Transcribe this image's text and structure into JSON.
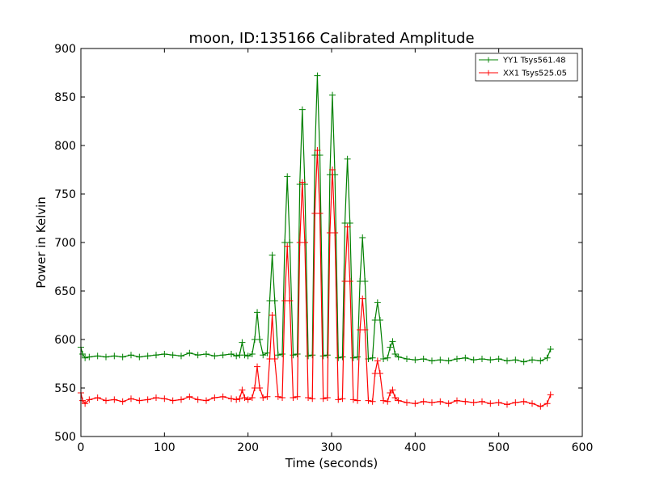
{
  "chart_data": {
    "type": "line",
    "title": "moon, ID:135166 Calibrated Amplitude",
    "xlabel": "Time (seconds)",
    "ylabel": "Power in Kelvin",
    "xlim": [
      0,
      600
    ],
    "ylim": [
      500,
      900
    ],
    "xticks": [
      "0",
      "100",
      "200",
      "300",
      "400",
      "500",
      "600"
    ],
    "yticks": [
      "500",
      "550",
      "600",
      "650",
      "700",
      "750",
      "800",
      "850",
      "900"
    ],
    "grid": false,
    "legend_position": "top-right",
    "series": [
      {
        "name": "YY1 Tsys561.48",
        "color": "#008000",
        "marker": "+",
        "x": [
          0,
          2,
          5,
          10,
          20,
          30,
          40,
          50,
          60,
          70,
          80,
          90,
          100,
          110,
          120,
          130,
          140,
          150,
          160,
          170,
          180,
          186,
          190,
          193,
          196,
          200,
          205,
          208,
          211,
          214,
          218,
          223,
          226,
          229,
          232,
          236,
          241,
          244,
          247,
          250,
          254,
          259,
          262,
          265,
          268,
          272,
          277,
          280,
          283,
          286,
          290,
          295,
          298,
          301,
          304,
          308,
          313,
          316,
          319,
          322,
          326,
          331,
          334,
          337,
          340,
          344,
          349,
          352,
          355,
          358,
          362,
          367,
          370,
          373,
          376,
          380,
          390,
          400,
          410,
          420,
          430,
          440,
          450,
          460,
          470,
          480,
          490,
          500,
          510,
          520,
          530,
          540,
          550,
          558,
          562
        ],
        "y": [
          592,
          585,
          581,
          582,
          583,
          582,
          583,
          582,
          584,
          582,
          583,
          584,
          585,
          584,
          583,
          586,
          584,
          585,
          583,
          584,
          585,
          583,
          584,
          597,
          584,
          583,
          585,
          600,
          628,
          600,
          584,
          586,
          640,
          687,
          640,
          584,
          585,
          700,
          768,
          700,
          584,
          585,
          760,
          837,
          760,
          583,
          584,
          790,
          872,
          790,
          583,
          584,
          770,
          852,
          770,
          581,
          582,
          720,
          786,
          720,
          581,
          582,
          660,
          705,
          660,
          580,
          581,
          620,
          638,
          620,
          580,
          581,
          592,
          598,
          585,
          582,
          580,
          579,
          580,
          578,
          579,
          578,
          580,
          581,
          579,
          580,
          579,
          580,
          578,
          579,
          577,
          579,
          578,
          581,
          590
        ]
      },
      {
        "name": "XX1 Tsys525.05",
        "color": "#ff0000",
        "marker": "+",
        "x": [
          0,
          2,
          5,
          10,
          20,
          30,
          40,
          50,
          60,
          70,
          80,
          90,
          100,
          110,
          120,
          130,
          140,
          150,
          160,
          170,
          180,
          186,
          190,
          193,
          196,
          200,
          205,
          208,
          211,
          214,
          218,
          223,
          226,
          229,
          232,
          236,
          241,
          244,
          247,
          250,
          254,
          259,
          262,
          265,
          268,
          272,
          277,
          280,
          283,
          286,
          290,
          295,
          298,
          301,
          304,
          308,
          313,
          316,
          319,
          322,
          326,
          331,
          334,
          337,
          340,
          344,
          349,
          352,
          355,
          358,
          362,
          367,
          370,
          373,
          376,
          380,
          390,
          400,
          410,
          420,
          430,
          440,
          450,
          460,
          470,
          480,
          490,
          500,
          510,
          520,
          530,
          540,
          550,
          558,
          562
        ],
        "y": [
          545,
          537,
          534,
          538,
          540,
          537,
          538,
          536,
          539,
          537,
          538,
          540,
          539,
          537,
          538,
          541,
          538,
          537,
          540,
          541,
          539,
          538,
          539,
          548,
          540,
          538,
          540,
          550,
          572,
          550,
          540,
          541,
          580,
          625,
          580,
          541,
          540,
          640,
          696,
          640,
          540,
          541,
          700,
          762,
          700,
          540,
          539,
          730,
          795,
          730,
          539,
          540,
          710,
          775,
          710,
          538,
          539,
          660,
          716,
          660,
          538,
          537,
          610,
          642,
          610,
          537,
          536,
          565,
          578,
          565,
          537,
          536,
          545,
          548,
          540,
          537,
          535,
          534,
          536,
          535,
          536,
          534,
          537,
          536,
          535,
          536,
          534,
          535,
          533,
          535,
          536,
          534,
          531,
          534,
          543
        ]
      }
    ]
  }
}
